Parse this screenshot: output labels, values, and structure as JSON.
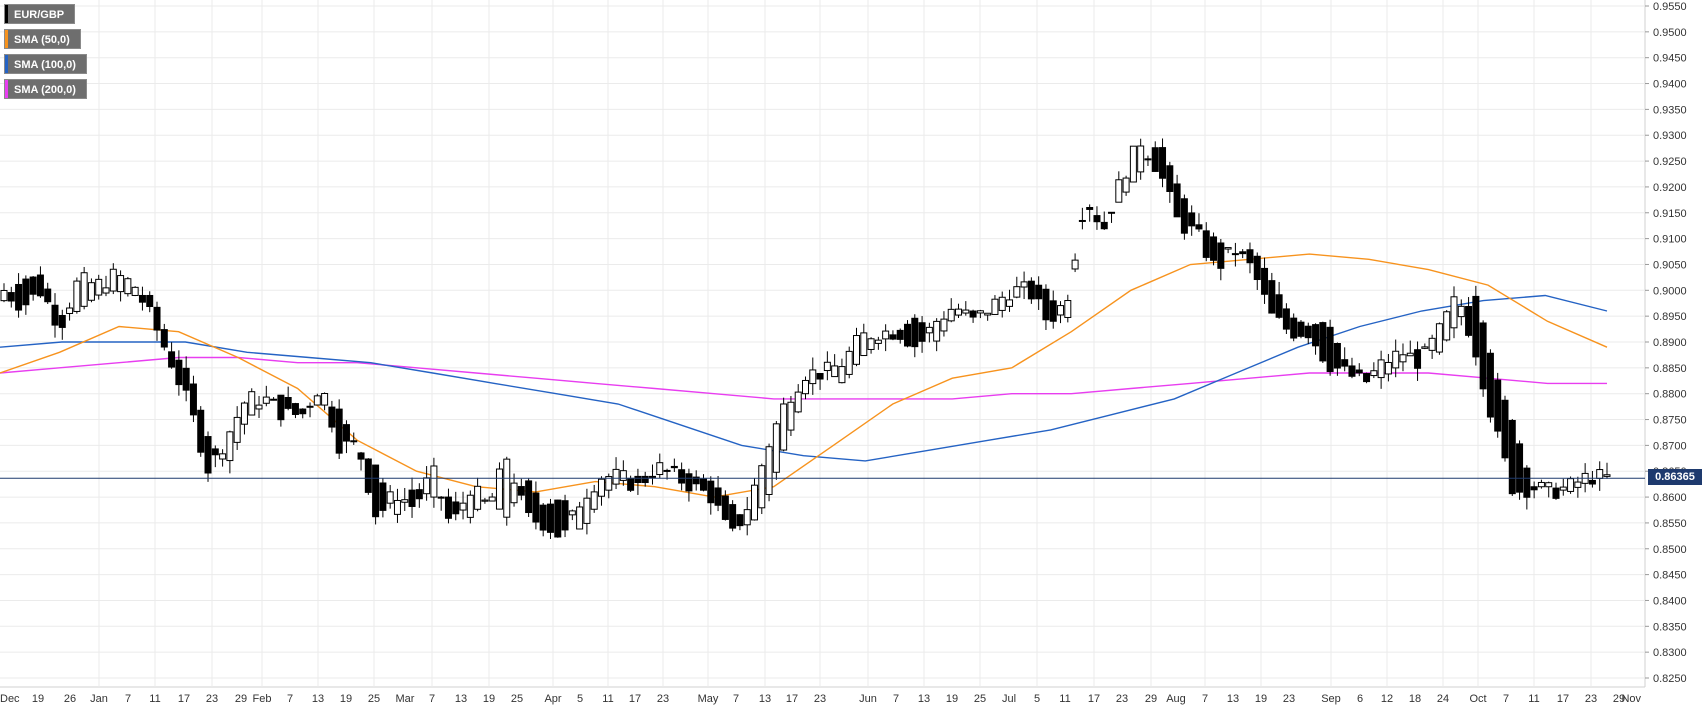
{
  "legend": [
    {
      "label": "EUR/GBP",
      "color": "#000000"
    },
    {
      "label": "SMA (50,0)",
      "color": "#f7931e"
    },
    {
      "label": "SMA (100,0)",
      "color": "#2563c4"
    },
    {
      "label": "SMA (200,0)",
      "color": "#e83ef0"
    }
  ],
  "price_tag": "0.86365",
  "chart_data": {
    "type": "candlestick",
    "title": "",
    "symbol": "EUR/GBP",
    "ylim": [
      0.825,
      0.955
    ],
    "y_ticks": [
      "0.9550",
      "0.9500",
      "0.9450",
      "0.9400",
      "0.9350",
      "0.9300",
      "0.9250",
      "0.9200",
      "0.9150",
      "0.9100",
      "0.9050",
      "0.9000",
      "0.8950",
      "0.8900",
      "0.8850",
      "0.8800",
      "0.8750",
      "0.8700",
      "0.8650",
      "0.8600",
      "0.8550",
      "0.8500",
      "0.8450",
      "0.8400",
      "0.8350",
      "0.8300",
      "0.8250"
    ],
    "x_ticks": [
      "Dec",
      "19",
      "26",
      "Jan",
      "7",
      "11",
      "17",
      "23",
      "29",
      "Feb",
      "7",
      "13",
      "19",
      "25",
      "Mar",
      "7",
      "13",
      "19",
      "25",
      "Apr",
      "5",
      "11",
      "17",
      "23",
      "May",
      "7",
      "13",
      "17",
      "23",
      "Jun",
      "7",
      "13",
      "19",
      "25",
      "Jul",
      "5",
      "11",
      "17",
      "23",
      "29",
      "Aug",
      "7",
      "13",
      "19",
      "23",
      "Sep",
      "6",
      "12",
      "18",
      "24",
      "Oct",
      "7",
      "11",
      "17",
      "23",
      "29",
      "Nov"
    ],
    "current_price": 0.86365,
    "grid": true,
    "legend_position": "top-left",
    "series": [
      {
        "name": "EUR/GBP",
        "anchors": [
          [
            0.898,
            0.9
          ],
          [
            0.902,
            0.897
          ],
          [
            0.903,
            0.9
          ],
          [
            0.895,
            0.893
          ],
          [
            0.896,
            0.902
          ],
          [
            0.899,
            0.901
          ],
          [
            0.9,
            0.903
          ],
          [
            0.899,
            0.901
          ],
          [
            0.899,
            0.894
          ],
          [
            0.888,
            0.886
          ],
          [
            0.884,
            0.877
          ],
          [
            0.871,
            0.865
          ],
          [
            0.866,
            0.872
          ],
          [
            0.875,
            0.879
          ],
          [
            0.878,
            0.879
          ],
          [
            0.88,
            0.876
          ],
          [
            0.877,
            0.876
          ],
          [
            0.878,
            0.882
          ],
          [
            0.877,
            0.87
          ],
          [
            0.869,
            0.87
          ],
          [
            0.866,
            0.856
          ],
          [
            0.856,
            0.861
          ],
          [
            0.862,
            0.858
          ],
          [
            0.86,
            0.865
          ],
          [
            0.86,
            0.854
          ],
          [
            0.856,
            0.862
          ],
          [
            0.86,
            0.858
          ],
          [
            0.856,
            0.868
          ],
          [
            0.864,
            0.856
          ],
          [
            0.858,
            0.855
          ],
          [
            0.86,
            0.852
          ],
          [
            0.853,
            0.86
          ],
          [
            0.86,
            0.864
          ],
          [
            0.863,
            0.864
          ],
          [
            0.864,
            0.862
          ],
          [
            0.864,
            0.866
          ],
          [
            0.866,
            0.864
          ],
          [
            0.864,
            0.862
          ],
          [
            0.863,
            0.86
          ],
          [
            0.859,
            0.852
          ],
          [
            0.854,
            0.859
          ],
          [
            0.86,
            0.87
          ],
          [
            0.871,
            0.879
          ],
          [
            0.88,
            0.884
          ],
          [
            0.885,
            0.884
          ],
          [
            0.882,
            0.886
          ],
          [
            0.887,
            0.891
          ],
          [
            0.89,
            0.892
          ],
          [
            0.892,
            0.892
          ],
          [
            0.895,
            0.889
          ],
          [
            0.89,
            0.894
          ],
          [
            0.895,
            0.897
          ],
          [
            0.896,
            0.894
          ],
          [
            0.895,
            0.897
          ],
          [
            0.897,
            0.9
          ],
          [
            0.902,
            0.9
          ],
          [
            0.9,
            0.894
          ],
          [
            0.893,
            0.898
          ],
          [
            0.917,
            0.918
          ],
          [
            0.913,
            0.912
          ],
          [
            0.918,
            0.922
          ],
          [
            0.923,
            0.929
          ],
          [
            0.929,
            0.923
          ],
          [
            0.92,
            0.913
          ],
          [
            0.913,
            0.911
          ],
          [
            0.91,
            0.904
          ],
          [
            0.907,
            0.908
          ],
          [
            0.908,
            0.904
          ],
          [
            0.902,
            0.895
          ],
          [
            0.895,
            0.892
          ],
          [
            0.893,
            0.892
          ],
          [
            0.894,
            0.886
          ],
          [
            0.886,
            0.884
          ],
          [
            0.884,
            0.882
          ],
          [
            0.883,
            0.886
          ],
          [
            0.886,
            0.888
          ],
          [
            0.889,
            0.886
          ],
          [
            0.888,
            0.892
          ],
          [
            0.894,
            0.899
          ],
          [
            0.899,
            0.888
          ],
          [
            0.884,
            0.873
          ],
          [
            0.874,
            0.861
          ],
          [
            0.862,
            0.862
          ],
          [
            0.862,
            0.861
          ],
          [
            0.861,
            0.862
          ],
          [
            0.863,
            0.864
          ],
          [
            0.864,
            0.8637
          ]
        ]
      },
      {
        "name": "SMA (50,0)",
        "values": [
          0.884,
          0.888,
          0.893,
          0.892,
          0.887,
          0.881,
          0.871,
          0.865,
          0.862,
          0.861,
          0.863,
          0.862,
          0.86,
          0.862,
          0.87,
          0.878,
          0.883,
          0.885,
          0.892,
          0.9,
          0.905,
          0.906,
          0.907,
          0.906,
          0.904,
          0.901,
          0.894,
          0.889
        ]
      },
      {
        "name": "SMA (100,0)",
        "values": [
          0.889,
          0.89,
          0.89,
          0.89,
          0.888,
          0.887,
          0.886,
          0.884,
          0.882,
          0.88,
          0.878,
          0.874,
          0.87,
          0.868,
          0.867,
          0.869,
          0.871,
          0.873,
          0.876,
          0.879,
          0.884,
          0.889,
          0.893,
          0.896,
          0.898,
          0.899,
          0.896
        ]
      },
      {
        "name": "SMA (200,0)",
        "values": [
          0.884,
          0.885,
          0.886,
          0.887,
          0.887,
          0.886,
          0.886,
          0.885,
          0.884,
          0.883,
          0.882,
          0.881,
          0.88,
          0.879,
          0.879,
          0.879,
          0.879,
          0.88,
          0.88,
          0.881,
          0.882,
          0.883,
          0.884,
          0.884,
          0.884,
          0.883,
          0.882,
          0.882
        ]
      }
    ]
  }
}
